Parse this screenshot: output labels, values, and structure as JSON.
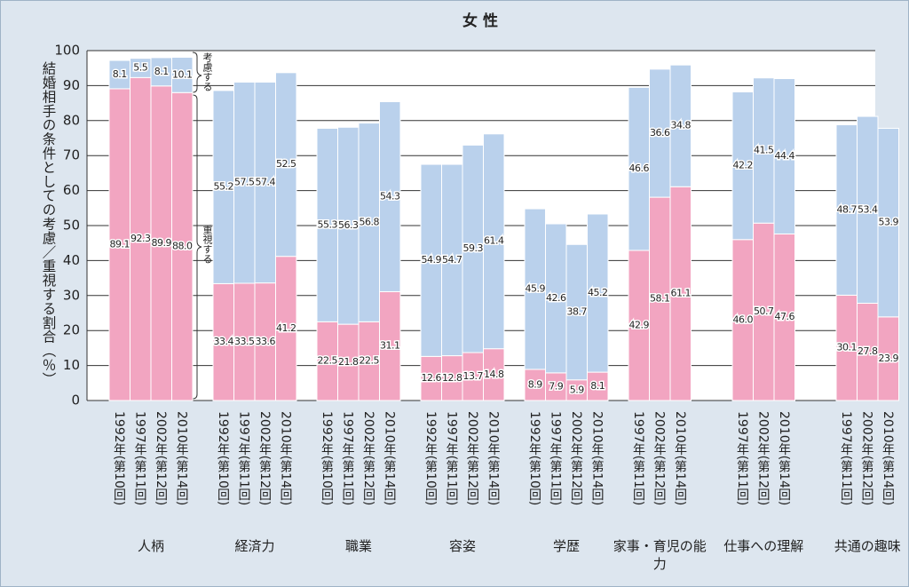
{
  "chart_data": {
    "type": "bar",
    "stacked": true,
    "title": "女 性",
    "ylabel": "結婚相手の条件としての考慮／重視する割合（％）",
    "ylim": [
      0,
      100
    ],
    "yticks": [
      0,
      10,
      20,
      30,
      40,
      50,
      60,
      70,
      80,
      90,
      100
    ],
    "grid": true,
    "series": [
      {
        "name": "重視する",
        "color": "#f2a5c1"
      },
      {
        "name": "考慮する",
        "color": "#bad1ec"
      }
    ],
    "groups": [
      {
        "label": "人柄",
        "categories": [
          "1992年(第10回)",
          "1997年(第11回)",
          "2002年(第12回)",
          "2010年(第14回)"
        ],
        "values": [
          [
            89.1,
            92.3,
            89.9,
            88.0
          ],
          [
            8.1,
            5.5,
            8.1,
            10.1
          ]
        ],
        "value_labels": [
          [
            "89.1",
            "92.3",
            "89.9",
            "88.0"
          ],
          [
            "8.1",
            "5.5",
            "8.1",
            "10.1"
          ]
        ]
      },
      {
        "label": "経済力",
        "categories": [
          "1992年(第10回)",
          "1997年(第11回)",
          "2002年(第12回)",
          "2010年(第14回)"
        ],
        "values": [
          [
            33.4,
            33.5,
            33.6,
            41.2
          ],
          [
            55.2,
            57.5,
            57.4,
            52.5
          ]
        ],
        "value_labels": [
          [
            "33.4",
            "33.5",
            "33.6",
            "41.2"
          ],
          [
            "55.2",
            "57.5",
            "57.4",
            "52.5"
          ]
        ]
      },
      {
        "label": "職業",
        "categories": [
          "1992年(第10回)",
          "1997年(第11回)",
          "2002年(第12回)",
          "2010年(第14回)"
        ],
        "values": [
          [
            22.5,
            21.8,
            22.5,
            31.1
          ],
          [
            55.3,
            56.3,
            56.8,
            54.3
          ]
        ],
        "value_labels": [
          [
            "22.5",
            "21.8",
            "22.5",
            "31.1"
          ],
          [
            "55.3",
            "56.3",
            "56.8",
            "54.3"
          ]
        ]
      },
      {
        "label": "容姿",
        "categories": [
          "1992年(第10回)",
          "1997年(第11回)",
          "2002年(第12回)",
          "2010年(第14回)"
        ],
        "values": [
          [
            12.6,
            12.8,
            13.7,
            14.8
          ],
          [
            54.9,
            54.7,
            59.3,
            61.4
          ]
        ],
        "value_labels": [
          [
            "12.6",
            "12.8",
            "13.7",
            "14.8"
          ],
          [
            "54.9",
            "54.7",
            "59.3",
            "61.4"
          ]
        ]
      },
      {
        "label": "学歴",
        "categories": [
          "1992年(第10回)",
          "1997年(第11回)",
          "2002年(第12回)",
          "2010年(第14回)"
        ],
        "values": [
          [
            8.9,
            7.9,
            5.9,
            8.1
          ],
          [
            45.9,
            42.6,
            38.7,
            45.2
          ]
        ],
        "value_labels": [
          [
            "8.9",
            "7.9",
            "5.9",
            "8.1"
          ],
          [
            "45.9",
            "42.6",
            "38.7",
            "45.2"
          ]
        ]
      },
      {
        "label": "家事・育児の能力",
        "categories": [
          "1997年(第11回)",
          "2002年(第12回)",
          "2010年(第14回)"
        ],
        "values": [
          [
            42.9,
            58.1,
            61.1
          ],
          [
            46.6,
            36.6,
            34.8
          ]
        ],
        "value_labels": [
          [
            "42.9",
            "58.1",
            "61.1"
          ],
          [
            "46.6",
            "36.6",
            "34.8"
          ]
        ]
      },
      {
        "label": "仕事への理解",
        "categories": [
          "1997年(第11回)",
          "2002年(第12回)",
          "2010年(第14回)"
        ],
        "values": [
          [
            46.0,
            50.7,
            47.6
          ],
          [
            42.2,
            41.5,
            44.4
          ]
        ],
        "value_labels": [
          [
            "46.0",
            "50.7",
            "47.6"
          ],
          [
            "42.2",
            "41.5",
            "44.4"
          ]
        ]
      },
      {
        "label": "共通の趣味",
        "categories": [
          "1997年(第11回)",
          "2002年(第12回)",
          "2010年(第14回)"
        ],
        "values": [
          [
            30.1,
            27.8,
            23.9
          ],
          [
            48.7,
            53.4,
            53.9
          ]
        ],
        "value_labels": [
          [
            "30.1",
            "27.8",
            "23.9"
          ],
          [
            "48.7",
            "53.4",
            "53.9"
          ]
        ]
      }
    ]
  }
}
